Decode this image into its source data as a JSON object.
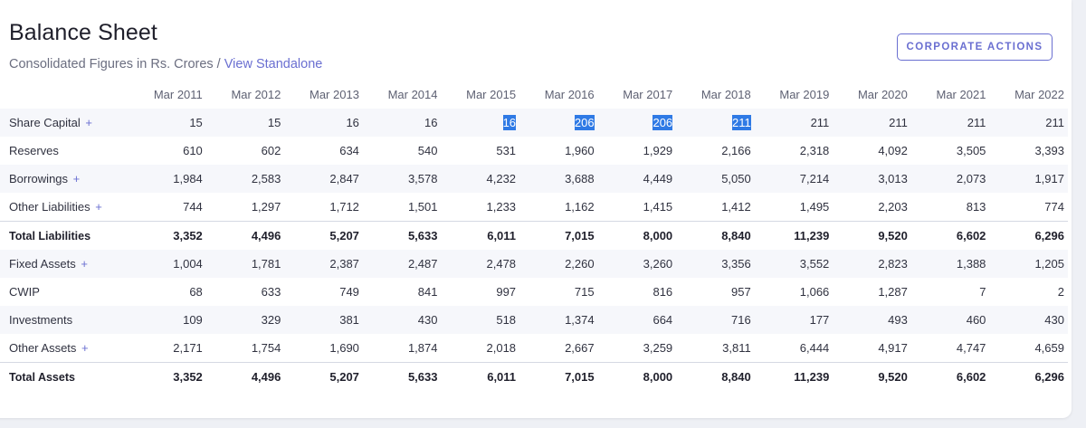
{
  "header": {
    "title": "Balance Sheet",
    "subtitle": "Consolidated Figures in Rs. Crores /",
    "standalone_link": "View Standalone",
    "corporate_actions_label": "CORPORATE ACTIONS"
  },
  "table": {
    "columns": [
      "Mar 2011",
      "Mar 2012",
      "Mar 2013",
      "Mar 2014",
      "Mar 2015",
      "Mar 2016",
      "Mar 2017",
      "Mar 2018",
      "Mar 2019",
      "Mar 2020",
      "Mar 2021",
      "Mar 2022"
    ],
    "rows": [
      {
        "label": "Share Capital",
        "expandable": true,
        "values": [
          "15",
          "15",
          "16",
          "16",
          "16",
          "206",
          "206",
          "211",
          "211",
          "211",
          "211",
          "211"
        ]
      },
      {
        "label": "Reserves",
        "expandable": false,
        "values": [
          "610",
          "602",
          "634",
          "540",
          "531",
          "1,960",
          "1,929",
          "2,166",
          "2,318",
          "4,092",
          "3,505",
          "3,393"
        ]
      },
      {
        "label": "Borrowings",
        "expandable": true,
        "values": [
          "1,984",
          "2,583",
          "2,847",
          "3,578",
          "4,232",
          "3,688",
          "4,449",
          "5,050",
          "7,214",
          "3,013",
          "2,073",
          "1,917"
        ]
      },
      {
        "label": "Other Liabilities",
        "expandable": true,
        "values": [
          "744",
          "1,297",
          "1,712",
          "1,501",
          "1,233",
          "1,162",
          "1,415",
          "1,412",
          "1,495",
          "2,203",
          "813",
          "774"
        ]
      },
      {
        "label": "Total Liabilities",
        "expandable": false,
        "total": true,
        "values": [
          "3,352",
          "4,496",
          "5,207",
          "5,633",
          "6,011",
          "7,015",
          "8,000",
          "8,840",
          "11,239",
          "9,520",
          "6,602",
          "6,296"
        ]
      },
      {
        "label": "Fixed Assets",
        "expandable": true,
        "values": [
          "1,004",
          "1,781",
          "2,387",
          "2,487",
          "2,478",
          "2,260",
          "3,260",
          "3,356",
          "3,552",
          "2,823",
          "1,388",
          "1,205"
        ]
      },
      {
        "label": "CWIP",
        "expandable": false,
        "values": [
          "68",
          "633",
          "749",
          "841",
          "997",
          "715",
          "816",
          "957",
          "1,066",
          "1,287",
          "7",
          "2"
        ]
      },
      {
        "label": "Investments",
        "expandable": false,
        "values": [
          "109",
          "329",
          "381",
          "430",
          "518",
          "1,374",
          "664",
          "716",
          "177",
          "493",
          "460",
          "430"
        ]
      },
      {
        "label": "Other Assets",
        "expandable": true,
        "values": [
          "2,171",
          "1,754",
          "1,690",
          "1,874",
          "2,018",
          "2,667",
          "3,259",
          "3,811",
          "6,444",
          "4,917",
          "4,747",
          "4,659"
        ]
      },
      {
        "label": "Total Assets",
        "expandable": false,
        "total": true,
        "values": [
          "3,352",
          "4,496",
          "5,207",
          "5,633",
          "6,011",
          "7,015",
          "8,000",
          "8,840",
          "11,239",
          "9,520",
          "6,602",
          "6,296"
        ]
      }
    ],
    "selection": {
      "row": 0,
      "from_col": 4,
      "to_col": 7
    },
    "expand_symbol": "+"
  },
  "colors": {
    "accent": "#6a6fd1",
    "selection": "#2f7ae5",
    "stripe": "#f6f7fb"
  }
}
